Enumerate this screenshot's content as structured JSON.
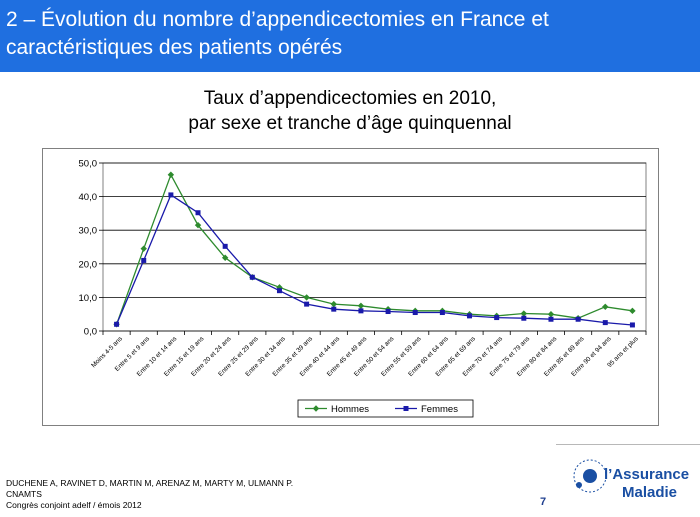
{
  "header": {
    "title": "2 – Évolution du nombre d’appendicectomies en France et\n        caractéristiques des patients opérés",
    "background": "#1f6fe0"
  },
  "chart_data": {
    "type": "line",
    "title": "Taux d’appendicectomies en 2010,\npar sexe et tranche d’âge quinquennal",
    "categories": [
      "Moins 4-5 ans",
      "Entre 5 et 9 ans",
      "Entre 10 et 14 ans",
      "Entre 15 et 19 ans",
      "Entre 20 et 24 ans",
      "Entre 25 et 29 ans",
      "Entre 30 et 34 ans",
      "Entre 35 et 39 ans",
      "Entre 40 et 44 ans",
      "Entre 45 et 49 ans",
      "Entre 50 et 54 ans",
      "Entre 55 et 59 ans",
      "Entre 60 et 64 ans",
      "Entre 65 et 69 ans",
      "Entre 70 et 74 ans",
      "Entre 75 et 79 ans",
      "Entre 80 et 84 ans",
      "Entre 85 et 89 ans",
      "Entre 90 et 94 ans",
      "95 ans et plus"
    ],
    "series": [
      {
        "name": "Hommes",
        "color": "#2e8b2e",
        "marker": "diamond",
        "values": [
          2.0,
          24.5,
          46.5,
          31.5,
          21.8,
          16.0,
          13.0,
          10.0,
          8.0,
          7.5,
          6.5,
          6.0,
          6.0,
          5.0,
          4.5,
          5.2,
          5.0,
          3.8,
          7.2,
          6.0
        ]
      },
      {
        "name": "Femmes",
        "color": "#1a1aaa",
        "marker": "square",
        "values": [
          2.0,
          21.0,
          40.5,
          35.2,
          25.2,
          16.0,
          12.0,
          8.0,
          6.5,
          6.0,
          5.8,
          5.5,
          5.5,
          4.5,
          4.0,
          3.8,
          3.5,
          3.5,
          2.5,
          1.8
        ]
      }
    ],
    "ylim": [
      0,
      50
    ],
    "y_ticks": [
      "0,0",
      "10,0",
      "20,0",
      "30,0",
      "40,0",
      "50,0"
    ],
    "grid": true,
    "legend_position": "bottom"
  },
  "footer": {
    "credit": "DUCHENE A, RAVINET D, MARTIN M, ARENAZ M, MARTY M, ULMANN P.\nCNAMTS\nCongrès conjoint adelf / émois 2012",
    "page_number": "7",
    "logo_line1": "l’Assurance",
    "logo_line2": "Maladie",
    "logo_color": "#1a4fa3"
  }
}
